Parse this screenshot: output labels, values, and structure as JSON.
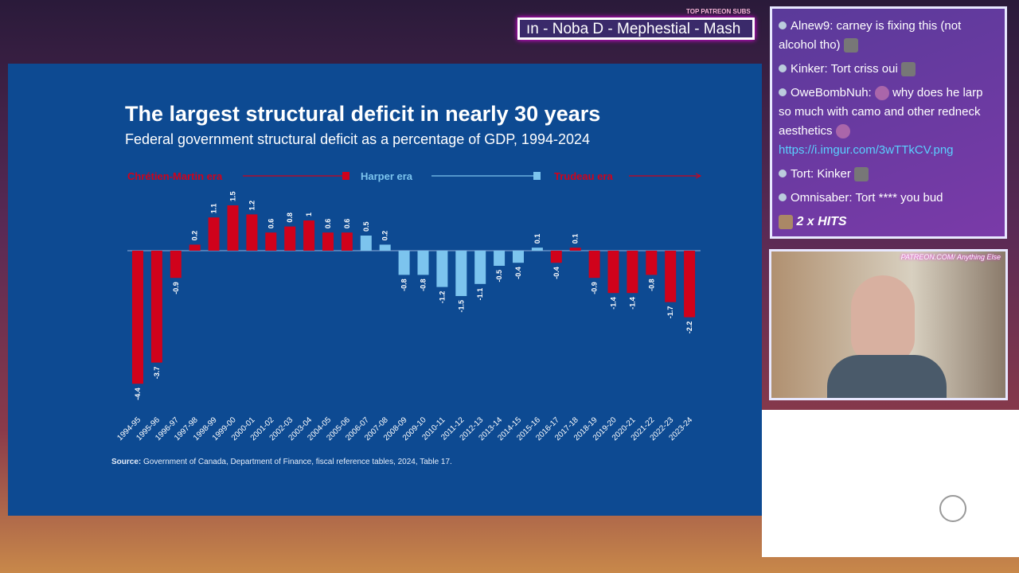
{
  "ticker": {
    "label": "TOP PATREON SUBS",
    "names": "ın -  Noba D - Mephestial - Mash"
  },
  "chat": {
    "messages": [
      {
        "user": "Alnew9",
        "text": "carney is fixing this (not alcohol tho)"
      },
      {
        "user": "Kinker",
        "text": "Tort criss oui"
      },
      {
        "user": "OweBombNuh",
        "text": "why does he larp so much with camo and other redneck aesthetics",
        "link": "https://i.imgur.com/3wTTkCV.png"
      },
      {
        "user": "Tort",
        "text": "Kinker"
      },
      {
        "user": "Omnisaber",
        "text": "Tort **** you bud"
      }
    ],
    "hits": "2 x HITS"
  },
  "cam": {
    "overlay": "PATREON.COM/ Anything Else"
  },
  "slide": {
    "title": "The largest structural deficit in nearly 30 years",
    "subtitle": "Federal government structural deficit as a percentage of GDP, 1994-2024",
    "source_label": "Source:",
    "source_text": " Government of Canada, Department of Finance, fiscal reference tables, 2024, Table 17."
  },
  "chart_data": {
    "type": "bar",
    "categories": [
      "1994-95",
      "1995-96",
      "1996-97",
      "1997-98",
      "1998-99",
      "1999-00",
      "2000-01",
      "2001-02",
      "2002-03",
      "2003-04",
      "2004-05",
      "2005-06",
      "2006-07",
      "2007-08",
      "2008-09",
      "2009-10",
      "2010-11",
      "2011-12",
      "2012-13",
      "2013-14",
      "2014-15",
      "2015-16",
      "2016-17",
      "2017-18",
      "2018-19",
      "2019-20",
      "2020-21",
      "2021-22",
      "2022-23",
      "2023-24"
    ],
    "values": [
      -4.4,
      -3.7,
      -0.9,
      0.2,
      1.1,
      1.5,
      1.2,
      0.6,
      0.8,
      1,
      0.6,
      0.6,
      0.5,
      0.2,
      -0.8,
      -0.8,
      -1.2,
      -1.5,
      -1.1,
      -0.5,
      -0.4,
      0.1,
      -0.4,
      0.1,
      -0.9,
      -1.4,
      -1.4,
      -0.8,
      -1.7,
      -2.2
    ],
    "eras": [
      {
        "name": "Chrétien-Martin era",
        "color": "#d0021b",
        "from": 0,
        "to": 11
      },
      {
        "name": "Harper era",
        "color": "#7cc4ee",
        "from": 12,
        "to": 21
      },
      {
        "name": "Trudeau era",
        "color": "#d0021b",
        "from": 22,
        "to": 29
      }
    ],
    "grid": false
  }
}
